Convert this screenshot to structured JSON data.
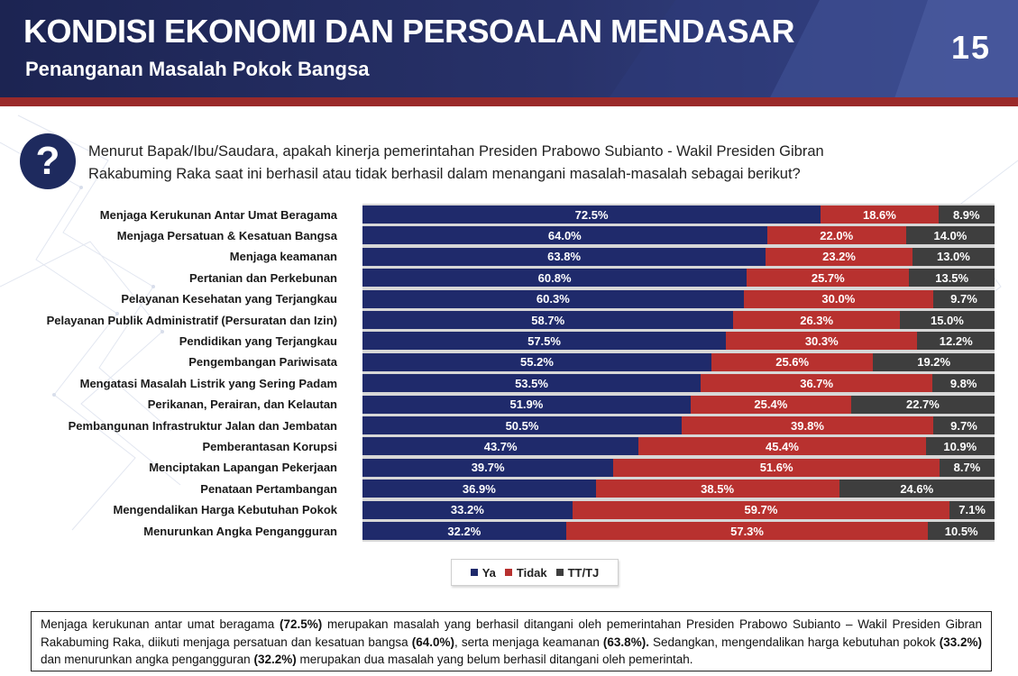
{
  "header": {
    "title": "KONDISI EKONOMI DAN PERSOALAN MENDASAR",
    "subtitle": "Penanganan Masalah Pokok Bangsa",
    "page_number": "15"
  },
  "question": {
    "icon": "question-mark-icon",
    "text": "Menurut Bapak/Ibu/Saudara, apakah kinerja pemerintahan Presiden Prabowo Subianto  - Wakil Presiden Gibran Rakabuming Raka saat ini berhasil atau tidak berhasil dalam menangani masalah-masalah sebagai berikut?"
  },
  "colors": {
    "ya": "#1f2a6b",
    "tidak": "#b8312f",
    "tttj": "#3e3e3e"
  },
  "chart_data": {
    "type": "bar",
    "orientation": "horizontal",
    "stacked": true,
    "categories": [
      "Menjaga Kerukunan Antar Umat Beragama",
      "Menjaga Persatuan & Kesatuan Bangsa",
      "Menjaga keamanan",
      "Pertanian dan Perkebunan",
      "Pelayanan Kesehatan yang Terjangkau",
      "Pelayanan Publik Administratif (Persuratan dan Izin)",
      "Pendidikan yang Terjangkau",
      "Pengembangan Pariwisata",
      "Mengatasi Masalah Listrik yang Sering Padam",
      "Perikanan, Perairan, dan Kelautan",
      "Pembangunan Infrastruktur Jalan dan Jembatan",
      "Pemberantasan Korupsi",
      "Menciptakan Lapangan Pekerjaan",
      "Penataan Pertambangan",
      "Mengendalikan Harga Kebutuhan Pokok",
      "Menurunkan Angka Pengangguran"
    ],
    "series": [
      {
        "name": "Ya",
        "values": [
          72.5,
          64.0,
          63.8,
          60.8,
          60.3,
          58.7,
          57.5,
          55.2,
          53.5,
          51.9,
          50.5,
          43.7,
          39.7,
          36.9,
          33.2,
          32.2
        ],
        "labels": [
          "72.5%",
          "64.0%",
          "63.8%",
          "60.8%",
          "60.3%",
          "58.7%",
          "57.5%",
          "55.2%",
          "53.5%",
          "51.9%",
          "50.5%",
          "43.7%",
          "39.7%",
          "36.9%",
          "33.2%",
          "32.2%"
        ]
      },
      {
        "name": "Tidak",
        "values": [
          18.6,
          22.0,
          23.2,
          25.7,
          30.0,
          26.3,
          30.3,
          25.6,
          36.7,
          25.4,
          39.8,
          45.4,
          51.6,
          38.5,
          59.7,
          57.3
        ],
        "labels": [
          "18.6%",
          "22.0%",
          "23.2%",
          "25.7%",
          "30.0%",
          "26.3%",
          "30.3%",
          "25.6%",
          "36.7%",
          "25.4%",
          "39.8%",
          "45.4%",
          "51.6%",
          "38.5%",
          "59.7%",
          "57.3%"
        ]
      },
      {
        "name": "TT/TJ",
        "values": [
          8.9,
          14.0,
          13.0,
          13.5,
          9.7,
          15.0,
          12.2,
          19.2,
          9.8,
          22.7,
          9.7,
          10.9,
          8.7,
          24.6,
          7.1,
          10.5
        ],
        "labels": [
          "8.9%",
          "14.0%",
          "13.0%",
          "13.5%",
          "9.7%",
          "15.0%",
          "12.2%",
          "19.2%",
          "9.8%",
          "22.7%",
          "9.7%",
          "10.9%",
          "8.7%",
          "24.6%",
          "7.1%",
          "10.5%"
        ]
      }
    ],
    "legend_position": "bottom"
  },
  "summary": {
    "parts": [
      {
        "text": "Menjaga kerukunan antar umat beragama ",
        "bold": false
      },
      {
        "text": "(72.5%)",
        "bold": true
      },
      {
        "text": " merupakan masalah yang berhasil ditangani oleh pemerintahan Presiden Prabowo Subianto – Wakil Presiden Gibran Rakabuming Raka, diikuti menjaga persatuan dan kesatuan bangsa ",
        "bold": false
      },
      {
        "text": "(64.0%)",
        "bold": true
      },
      {
        "text": ", serta menjaga keamanan ",
        "bold": false
      },
      {
        "text": "(63.8%).",
        "bold": true
      },
      {
        "text": " Sedangkan, mengendalikan harga kebutuhan pokok ",
        "bold": false
      },
      {
        "text": "(33.2%)",
        "bold": true
      },
      {
        "text": " dan menurunkan angka pengangguran ",
        "bold": false
      },
      {
        "text": "(32.2%)",
        "bold": true
      },
      {
        "text": " merupakan dua masalah yang belum berhasil ditangani oleh pemerintah.",
        "bold": false
      }
    ]
  }
}
